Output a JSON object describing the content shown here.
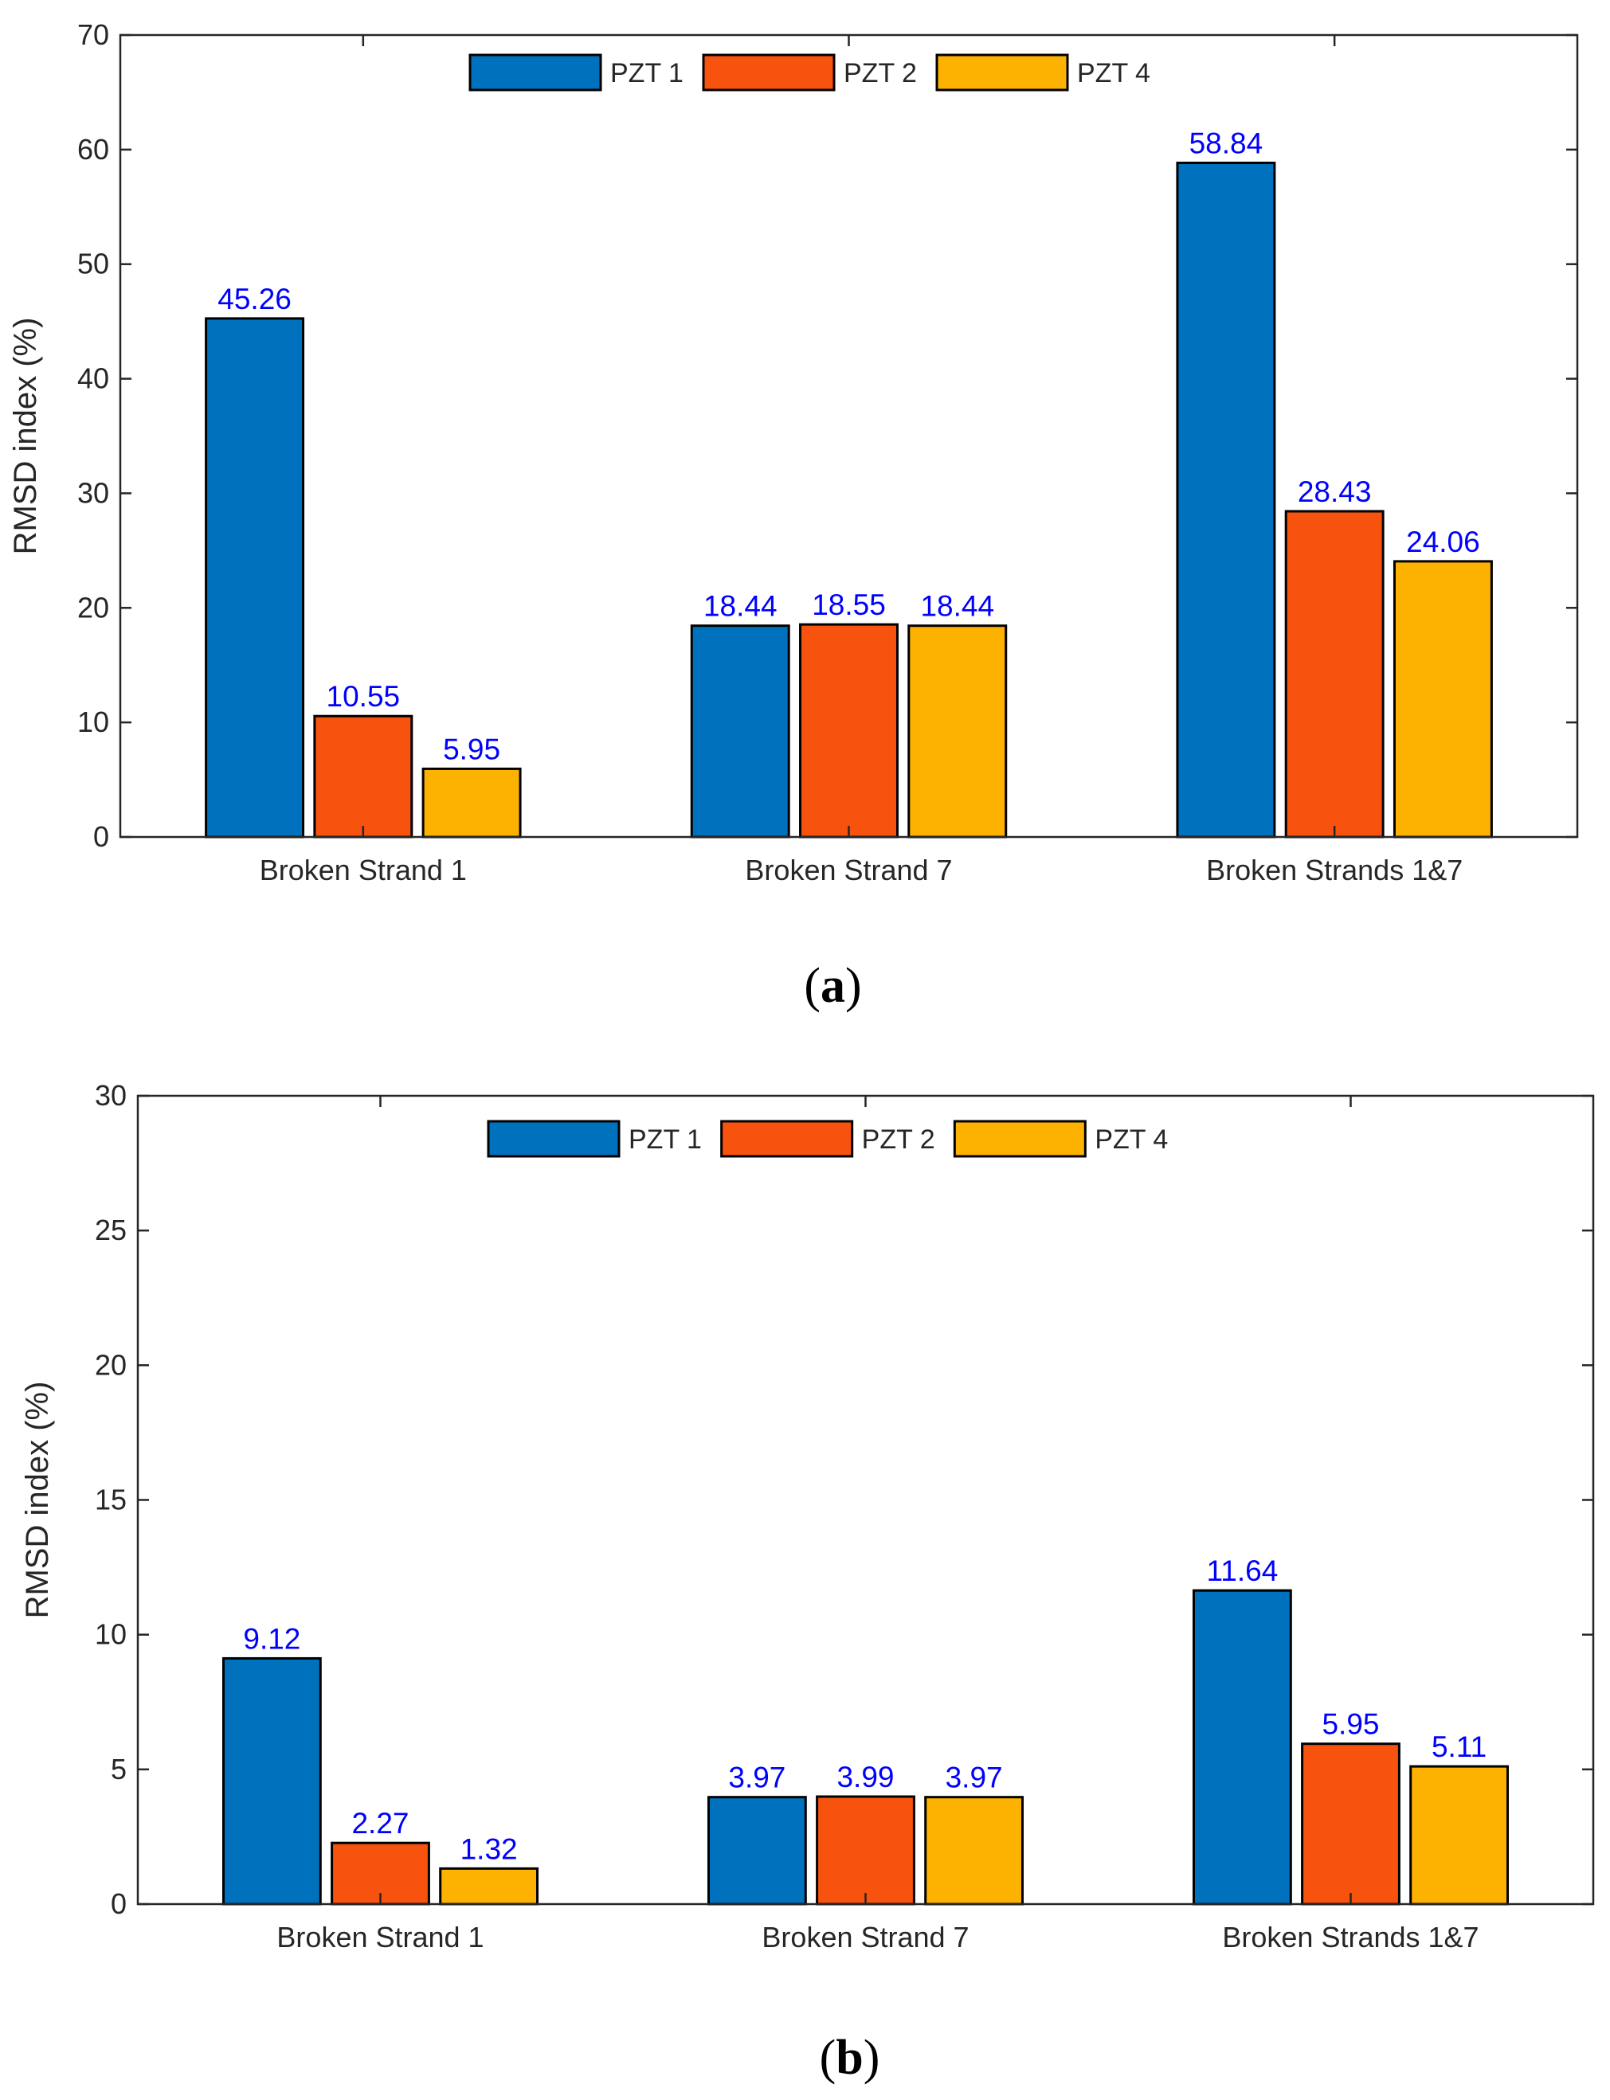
{
  "chart_data": [
    {
      "type": "bar",
      "panel_label": "a",
      "categories": [
        "Broken Strand 1",
        "Broken Strand 7",
        "Broken Strands 1&7"
      ],
      "series": [
        {
          "name": "PZT 1",
          "values": [
            45.26,
            18.44,
            58.84
          ],
          "labels": [
            "45.26",
            "18.44",
            "58.84"
          ]
        },
        {
          "name": "PZT 2",
          "values": [
            10.55,
            18.55,
            28.43
          ],
          "labels": [
            "10.55",
            "18.55",
            "28.43"
          ]
        },
        {
          "name": "PZT 4",
          "values": [
            5.95,
            18.44,
            24.06
          ],
          "labels": [
            "5.95",
            "18.44",
            "24.06"
          ]
        }
      ],
      "ylabel": "RMSD index (%)",
      "ylim": [
        0,
        70
      ],
      "yticks": [
        0,
        10,
        20,
        30,
        40,
        50,
        60,
        70
      ],
      "legend_position": "top-center",
      "grid": false
    },
    {
      "type": "bar",
      "panel_label": "b",
      "categories": [
        "Broken Strand 1",
        "Broken Strand 7",
        "Broken Strands 1&7"
      ],
      "series": [
        {
          "name": "PZT 1",
          "values": [
            9.12,
            3.97,
            11.64
          ],
          "labels": [
            "9.12",
            "3.97",
            "11.64"
          ]
        },
        {
          "name": "PZT 2",
          "values": [
            2.27,
            3.99,
            5.95
          ],
          "labels": [
            "2.27",
            "3.99",
            "5.95"
          ]
        },
        {
          "name": "PZT 4",
          "values": [
            1.32,
            3.97,
            5.11
          ],
          "labels": [
            "1.32",
            "3.97",
            "5.11"
          ]
        }
      ],
      "ylabel": "RMSD index (%)",
      "ylim": [
        0,
        30
      ],
      "yticks": [
        0,
        5,
        10,
        15,
        20,
        25,
        30
      ],
      "legend_position": "top-center",
      "grid": false
    }
  ],
  "colors": {
    "series": [
      "#0072BD",
      "#F7530E",
      "#FDB100"
    ],
    "value_labels": "#0000FF",
    "axis": "#262626"
  }
}
